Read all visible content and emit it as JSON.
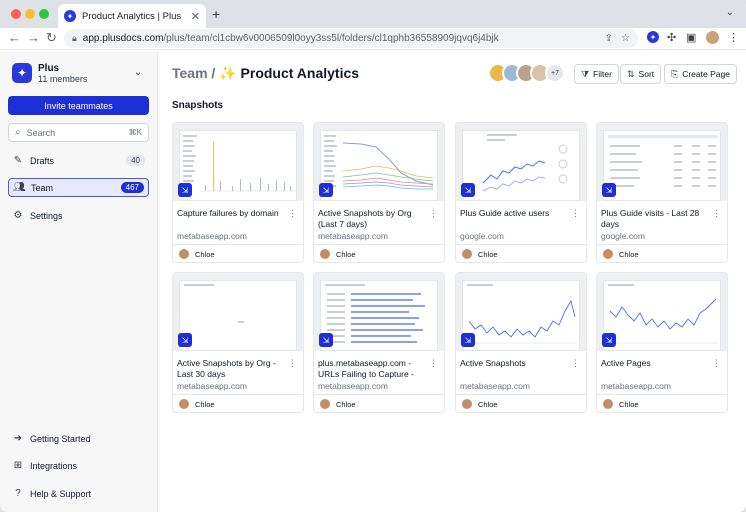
{
  "browser": {
    "tab_title": "Product Analytics | Plus",
    "tab_close": "✕",
    "new_tab": "+",
    "tab_menu": "⌄",
    "url_host": "app.plusdocs.com",
    "url_path": "/plus/team/cl1cbw6v0006509l0oyy3ss5l/folders/cl1qphb36558909jqvq6j4bjk"
  },
  "sidebar": {
    "workspace_name": "Plus",
    "workspace_members": "11 members",
    "invite_label": "Invite teammates",
    "search_placeholder": "Search",
    "search_shortcut": "⌘K",
    "items": [
      {
        "label": "Drafts",
        "count": "40"
      },
      {
        "label": "Team",
        "count": "467"
      },
      {
        "label": "Settings",
        "count": ""
      }
    ],
    "bottom_items": [
      {
        "label": "Getting Started"
      },
      {
        "label": "Integrations"
      },
      {
        "label": "Help & Support"
      }
    ]
  },
  "header": {
    "breadcrumb_parent": "Team",
    "separator": " / ",
    "sparkle": "✨",
    "title": "Product Analytics",
    "extra_members": "+7",
    "filter_label": "Filter",
    "sort_label": "Sort",
    "create_label": "Create Page"
  },
  "section_title": "Snapshots",
  "cards": [
    {
      "title": "Capture failures by domain",
      "source": "metabaseapp.com",
      "author": "Chloe",
      "thumb": "bars"
    },
    {
      "title": "Active Snapshots by Org (Last 7 days)",
      "source": "metabaseapp.com",
      "author": "Chloe",
      "thumb": "lines"
    },
    {
      "title": "Plus Guide active users",
      "source": "google.com",
      "author": "Chloe",
      "thumb": "guide"
    },
    {
      "title": "Plus Guide visits - Last 28 days",
      "source": "google.com",
      "author": "Chloe",
      "thumb": "table"
    },
    {
      "title": "Active Snapshots by Org - Last 30 days",
      "source": "metabaseapp.com",
      "author": "Chloe",
      "thumb": "blank"
    },
    {
      "title": "plus.metabaseapp.com - URLs Failing to Capture - Metabase",
      "source": "metabaseapp.com",
      "author": "Chloe",
      "thumb": "list"
    },
    {
      "title": "Active Snapshots",
      "source": "metabaseapp.com",
      "author": "Chloe",
      "thumb": "line1"
    },
    {
      "title": "Active Pages",
      "source": "metabaseapp.com",
      "author": "Chloe",
      "thumb": "line2"
    }
  ],
  "colors": {
    "accent": "#1d2fd6",
    "chart_blue": "#4f6ff0"
  }
}
